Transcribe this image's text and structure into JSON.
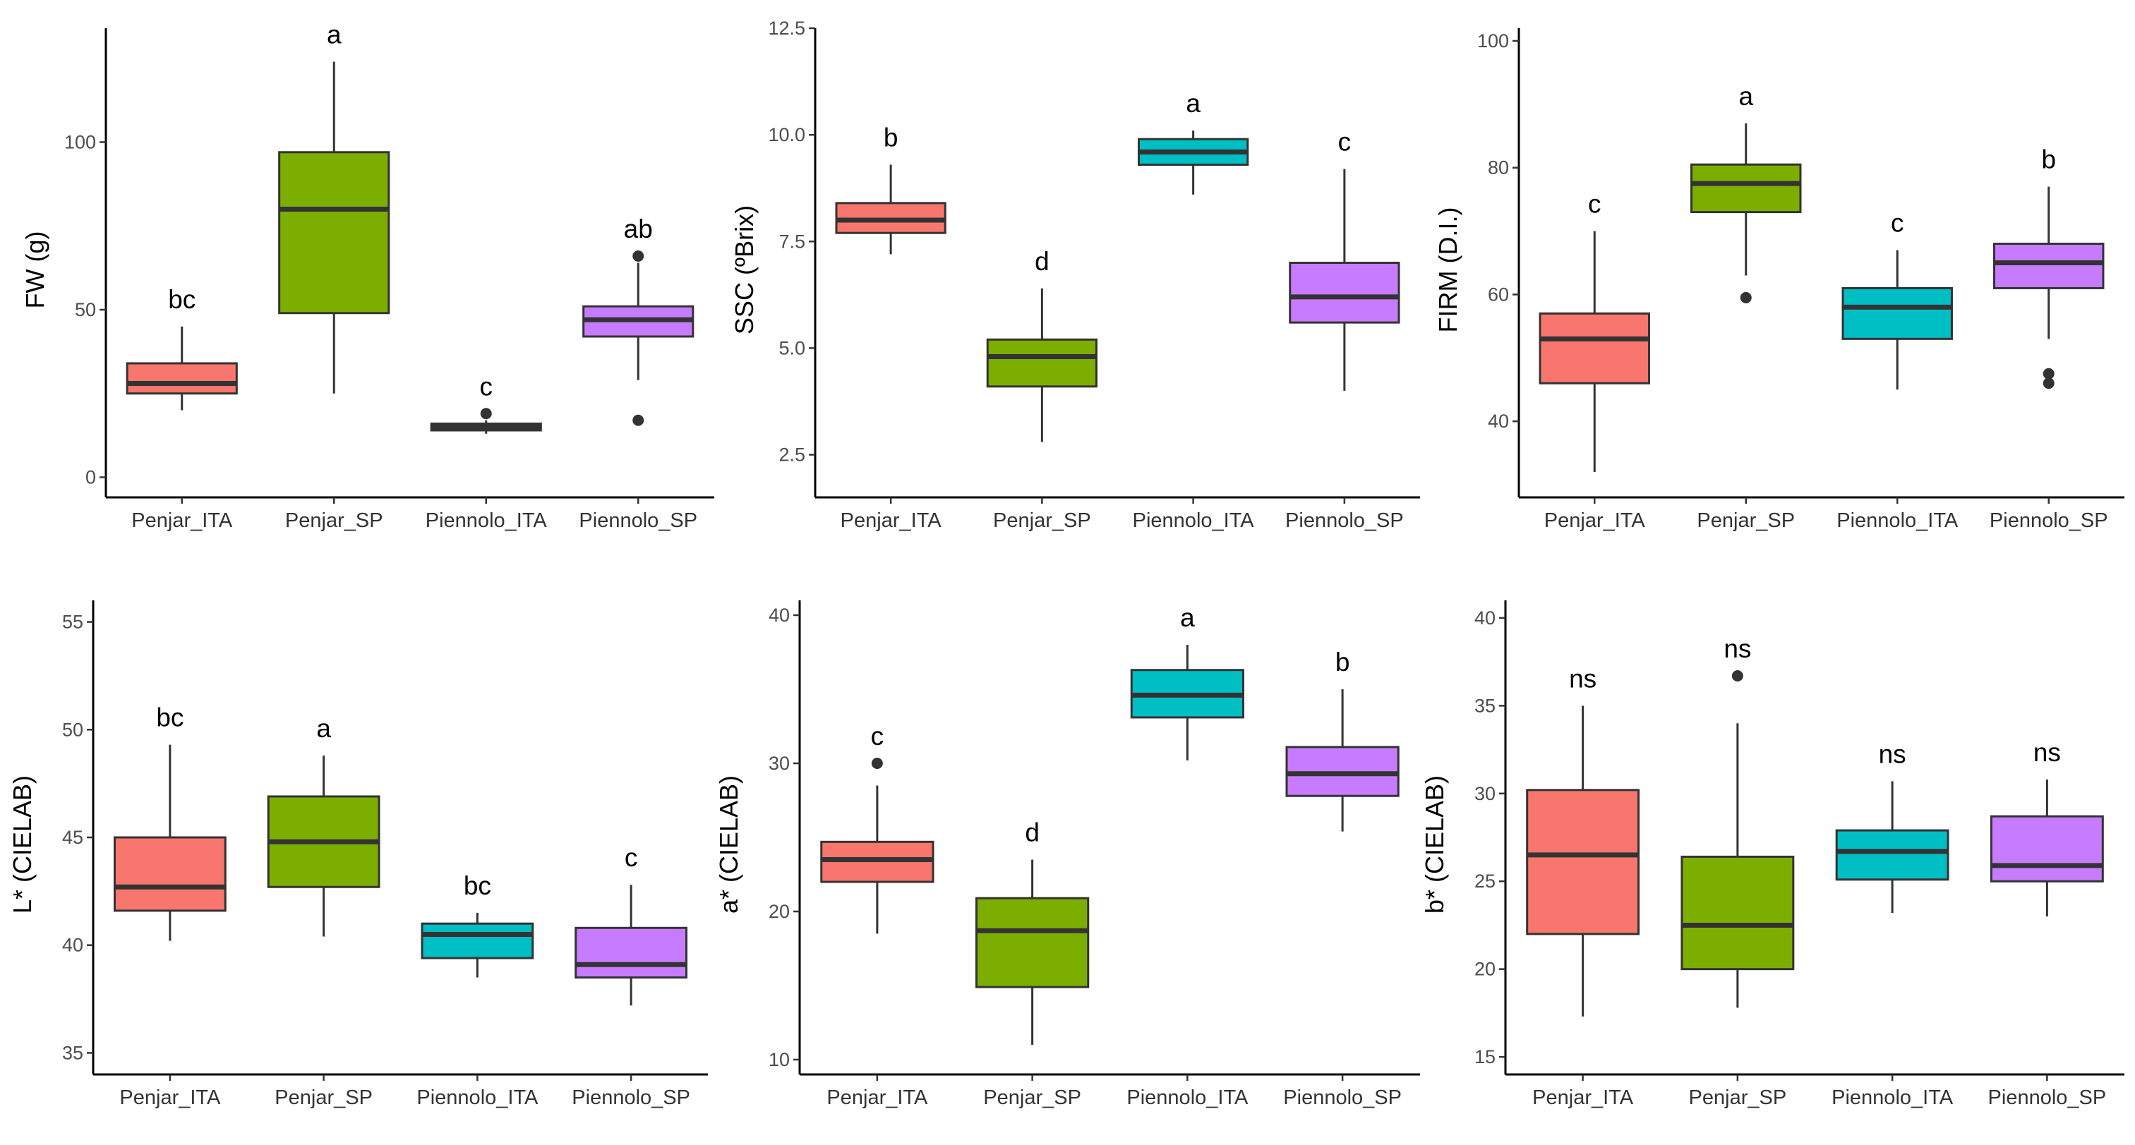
{
  "colors": {
    "Penjar_ITA": "#F8766D",
    "Penjar_SP": "#7CAE00",
    "Piennolo_ITA": "#00BFC4",
    "Piennolo_SP": "#C77CFF"
  },
  "chart_data": [
    {
      "type": "boxplot",
      "ylabel": "FW (g)",
      "ylim": [
        -6,
        134
      ],
      "yticks": [
        0,
        50,
        100
      ],
      "categories": [
        "Penjar_ITA",
        "Penjar_SP",
        "Piennolo_ITA",
        "Piennolo_SP"
      ],
      "boxes": [
        {
          "min": 20,
          "q1": 25,
          "median": 28,
          "q3": 34,
          "max": 45,
          "outliers": [],
          "letter": "bc"
        },
        {
          "min": 25,
          "q1": 49,
          "median": 80,
          "q3": 97,
          "max": 124,
          "outliers": [],
          "letter": "a"
        },
        {
          "min": 13,
          "q1": 14,
          "median": 15,
          "q3": 16,
          "max": 17,
          "outliers": [
            19
          ],
          "letter": "c"
        },
        {
          "min": 29,
          "q1": 42,
          "median": 47,
          "q3": 51,
          "max": 64,
          "outliers": [
            66,
            17
          ],
          "letter": "ab"
        }
      ]
    },
    {
      "type": "boxplot",
      "ylabel": "SSC (ºBrix)",
      "ylim": [
        1.5,
        12.5
      ],
      "yticks": [
        2.5,
        5.0,
        7.5,
        10.0,
        12.5
      ],
      "categories": [
        "Penjar_ITA",
        "Penjar_SP",
        "Piennolo_ITA",
        "Piennolo_SP"
      ],
      "boxes": [
        {
          "min": 7.2,
          "q1": 7.7,
          "median": 8.0,
          "q3": 8.4,
          "max": 9.3,
          "outliers": [],
          "letter": "b"
        },
        {
          "min": 2.8,
          "q1": 4.1,
          "median": 4.8,
          "q3": 5.2,
          "max": 6.4,
          "outliers": [],
          "letter": "d"
        },
        {
          "min": 8.6,
          "q1": 9.3,
          "median": 9.6,
          "q3": 9.9,
          "max": 10.1,
          "outliers": [],
          "letter": "a"
        },
        {
          "min": 4.0,
          "q1": 5.6,
          "median": 6.2,
          "q3": 7.0,
          "max": 9.2,
          "outliers": [],
          "letter": "c"
        }
      ]
    },
    {
      "type": "boxplot",
      "ylabel": "FIRM (D.I.)",
      "ylim": [
        28,
        102
      ],
      "yticks": [
        40,
        60,
        80,
        100
      ],
      "categories": [
        "Penjar_ITA",
        "Penjar_SP",
        "Piennolo_ITA",
        "Piennolo_SP"
      ],
      "boxes": [
        {
          "min": 32,
          "q1": 46,
          "median": 53,
          "q3": 57,
          "max": 70,
          "outliers": [],
          "letter": "c"
        },
        {
          "min": 63,
          "q1": 73,
          "median": 77.5,
          "q3": 80.5,
          "max": 87,
          "outliers": [
            59.5
          ],
          "letter": "a"
        },
        {
          "min": 45,
          "q1": 53,
          "median": 58,
          "q3": 61,
          "max": 67,
          "outliers": [],
          "letter": "c"
        },
        {
          "min": 53,
          "q1": 61,
          "median": 65,
          "q3": 68,
          "max": 77,
          "outliers": [
            47.5,
            46
          ],
          "letter": "b"
        }
      ]
    },
    {
      "type": "boxplot",
      "ylabel": "L* (CIELAB)",
      "ylim": [
        34,
        56
      ],
      "yticks": [
        35,
        40,
        45,
        50,
        55
      ],
      "categories": [
        "Penjar_ITA",
        "Penjar_SP",
        "Piennolo_ITA",
        "Piennolo_SP"
      ],
      "boxes": [
        {
          "min": 40.2,
          "q1": 41.6,
          "median": 42.7,
          "q3": 45.0,
          "max": 49.3,
          "outliers": [],
          "letter": "bc"
        },
        {
          "min": 40.4,
          "q1": 42.7,
          "median": 44.8,
          "q3": 46.9,
          "max": 48.8,
          "outliers": [],
          "letter": "a"
        },
        {
          "min": 38.5,
          "q1": 39.4,
          "median": 40.5,
          "q3": 41.0,
          "max": 41.5,
          "outliers": [],
          "letter": "bc"
        },
        {
          "min": 37.2,
          "q1": 38.5,
          "median": 39.1,
          "q3": 40.8,
          "max": 42.8,
          "outliers": [],
          "letter": "c"
        }
      ]
    },
    {
      "type": "boxplot",
      "ylabel": "a* (CIELAB)",
      "ylim": [
        9,
        41
      ],
      "yticks": [
        10,
        20,
        30,
        40
      ],
      "categories": [
        "Penjar_ITA",
        "Penjar_SP",
        "Piennolo_ITA",
        "Piennolo_SP"
      ],
      "boxes": [
        {
          "min": 18.5,
          "q1": 22.0,
          "median": 23.5,
          "q3": 24.7,
          "max": 28.5,
          "outliers": [
            30.0
          ],
          "letter": "c"
        },
        {
          "min": 11.0,
          "q1": 14.9,
          "median": 18.7,
          "q3": 20.9,
          "max": 23.5,
          "outliers": [],
          "letter": "d"
        },
        {
          "min": 30.2,
          "q1": 33.1,
          "median": 34.6,
          "q3": 36.3,
          "max": 38.0,
          "outliers": [],
          "letter": "a"
        },
        {
          "min": 25.4,
          "q1": 27.8,
          "median": 29.3,
          "q3": 31.1,
          "max": 35.0,
          "outliers": [],
          "letter": "b"
        }
      ]
    },
    {
      "type": "boxplot",
      "ylabel": "b* (CIELAB)",
      "ylim": [
        14,
        41
      ],
      "yticks": [
        15,
        20,
        25,
        30,
        35,
        40
      ],
      "categories": [
        "Penjar_ITA",
        "Penjar_SP",
        "Piennolo_ITA",
        "Piennolo_SP"
      ],
      "boxes": [
        {
          "min": 17.3,
          "q1": 22.0,
          "median": 26.5,
          "q3": 30.2,
          "max": 35.0,
          "outliers": [],
          "letter": "ns"
        },
        {
          "min": 17.8,
          "q1": 20.0,
          "median": 22.5,
          "q3": 26.4,
          "max": 34.0,
          "outliers": [
            36.7
          ],
          "letter": "ns"
        },
        {
          "min": 23.2,
          "q1": 25.1,
          "median": 26.7,
          "q3": 27.9,
          "max": 30.7,
          "outliers": [],
          "letter": "ns"
        },
        {
          "min": 23.0,
          "q1": 25.0,
          "median": 25.9,
          "q3": 28.7,
          "max": 30.8,
          "outliers": [],
          "letter": "ns"
        }
      ]
    }
  ]
}
